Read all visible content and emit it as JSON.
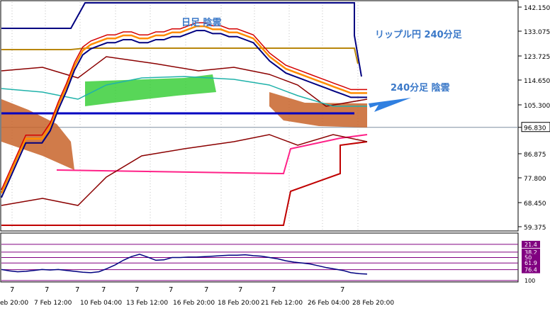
{
  "annotations": {
    "daily_cloud": "日足 陰雲",
    "title": "リップル円 240分足",
    "h4_cloud": "240分足 陰雲"
  },
  "colors": {
    "frame": "#000000",
    "grid": "#c0c0c0",
    "cloud_fill": "#c8642a",
    "cloud_pink": "#ff66cc",
    "annotation_text": "#3a78c8",
    "arrow": "#2f7fe0",
    "price_line": "#7f8fa0",
    "price_label_bg": "#ffffff",
    "rsi_level_fill": "#800080",
    "rsi_line": "#000080"
  },
  "chart_data": [
    {
      "type": "line",
      "title": "",
      "instrument_label": "リップル円 240分足",
      "y_ticks": [
        "142.150",
        "133.075",
        "123.725",
        "114.650",
        "105.300",
        "96.830",
        "86.875",
        "77.800",
        "68.450",
        "59.375"
      ],
      "current_price": "96.830",
      "x_ticks": [
        "eb 20:00",
        "7 Feb 12:00",
        "10 Feb 04:00",
        "13 Feb 12:00",
        "16 Feb 20:00",
        "18 Feb 20:00",
        "21 Feb 12:00",
        "26 Feb 04:00",
        "28 Feb 20:00"
      ],
      "x_tick_markers": [
        "7",
        "7",
        "7",
        "7",
        "7",
        "7",
        "7",
        "7",
        "7",
        "7"
      ],
      "ylim": [
        59.375,
        148
      ],
      "series": [
        {
          "values": [
            66,
            72,
            78,
            84,
            84,
            84,
            88,
            95,
            101,
            108,
            113,
            115,
            116,
            117,
            117,
            118,
            118,
            117,
            117,
            118,
            118,
            119,
            119,
            120,
            121,
            121,
            120,
            120,
            119,
            119,
            118,
            117,
            114,
            111,
            109,
            107,
            106,
            105,
            104,
            103,
            102,
            101,
            100,
            99,
            99,
            99
          ]
        }
      ],
      "levels": [
        {
          "color": "#000080",
          "values": [
            60,
            60,
            60,
            60,
            60,
            60,
            60,
            60,
            60,
            60,
            60,
            60,
            60,
            60,
            60,
            60,
            60,
            60,
            60,
            60,
            60,
            60,
            60,
            60,
            60,
            60,
            60,
            60,
            60,
            60,
            60,
            60,
            60,
            60,
            60,
            60,
            60,
            60,
            60,
            60,
            60,
            60,
            60,
            60,
            60,
            60
          ]
        }
      ],
      "legend": "none",
      "grid": true
    },
    {
      "type": "line",
      "title": "",
      "y_ticks": [
        "21.4",
        "38.2",
        "50",
        "61.9",
        "76.4",
        "100"
      ],
      "ylim": [
        0,
        100
      ],
      "levels": [
        21.4,
        38.2,
        50,
        61.9,
        76.4,
        100
      ],
      "series": [
        {
          "values": [
            76,
            79,
            81,
            80,
            78,
            76,
            77,
            76,
            78,
            80,
            82,
            83,
            81,
            74,
            66,
            56,
            48,
            43,
            49,
            56,
            55,
            50,
            50,
            49,
            49,
            48,
            47,
            46,
            45,
            45,
            44,
            46,
            47,
            50,
            53,
            57,
            60,
            62,
            64,
            68,
            72,
            75,
            78,
            83,
            85,
            86
          ]
        }
      ],
      "legend": "none",
      "grid": true
    }
  ]
}
